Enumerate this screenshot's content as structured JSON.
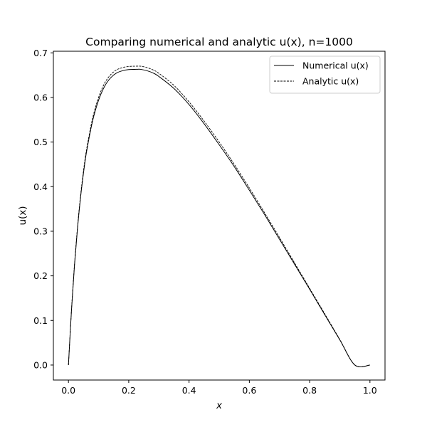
{
  "chart_data": {
    "type": "line",
    "title": "Comparing numerical and analytic u(x), n=1000",
    "xlabel": "x",
    "ylabel": "u(x)",
    "xlim": [
      -0.05,
      1.05
    ],
    "ylim": [
      -0.0336,
      0.7036
    ],
    "xticks": [
      0.0,
      0.2,
      0.4,
      0.6,
      0.8,
      1.0
    ],
    "xtick_labels": [
      "0.0",
      "0.2",
      "0.4",
      "0.6",
      "0.8",
      "1.0"
    ],
    "yticks": [
      0.0,
      0.1,
      0.2,
      0.3,
      0.4,
      0.5,
      0.6,
      0.7
    ],
    "ytick_labels": [
      "0.0",
      "0.1",
      "0.2",
      "0.3",
      "0.4",
      "0.5",
      "0.6",
      "0.7"
    ],
    "grid": false,
    "legend_position": "top-right",
    "series": [
      {
        "name": "Numerical u(x)",
        "style": "solid",
        "color": "#000000",
        "x": [
          0.0,
          0.01,
          0.02,
          0.03,
          0.04,
          0.05,
          0.06,
          0.08,
          0.1,
          0.12,
          0.14,
          0.16,
          0.18,
          0.2,
          0.22,
          0.23,
          0.24,
          0.26,
          0.28,
          0.3,
          0.35,
          0.4,
          0.45,
          0.5,
          0.55,
          0.6,
          0.65,
          0.7,
          0.75,
          0.8,
          0.85,
          0.9,
          0.95,
          1.0
        ],
        "y": [
          0.0,
          0.122,
          0.223,
          0.306,
          0.375,
          0.431,
          0.478,
          0.547,
          0.594,
          0.625,
          0.644,
          0.655,
          0.66,
          0.6625,
          0.663,
          0.6632,
          0.663,
          0.66,
          0.655,
          0.647,
          0.62,
          0.584,
          0.541,
          0.494,
          0.445,
          0.392,
          0.338,
          0.282,
          0.226,
          0.17,
          0.113,
          0.0565,
          0.0,
          0.0
        ]
      },
      {
        "name": "Analytic u(x)",
        "style": "dashed",
        "color": "#000000",
        "x": [
          0.0,
          0.01,
          0.02,
          0.03,
          0.04,
          0.05,
          0.06,
          0.08,
          0.1,
          0.12,
          0.14,
          0.16,
          0.18,
          0.2,
          0.22,
          0.23,
          0.24,
          0.26,
          0.28,
          0.3,
          0.35,
          0.4,
          0.45,
          0.5,
          0.55,
          0.6,
          0.65,
          0.7,
          0.75,
          0.8,
          0.85,
          0.9,
          0.95,
          1.0
        ],
        "y": [
          0.0,
          0.123,
          0.225,
          0.309,
          0.379,
          0.436,
          0.483,
          0.553,
          0.6,
          0.632,
          0.651,
          0.662,
          0.667,
          0.6695,
          0.67,
          0.6702,
          0.67,
          0.667,
          0.662,
          0.654,
          0.627,
          0.59,
          0.547,
          0.5,
          0.45,
          0.397,
          0.342,
          0.286,
          0.229,
          0.172,
          0.115,
          0.0574,
          0.0,
          0.0
        ]
      }
    ]
  }
}
